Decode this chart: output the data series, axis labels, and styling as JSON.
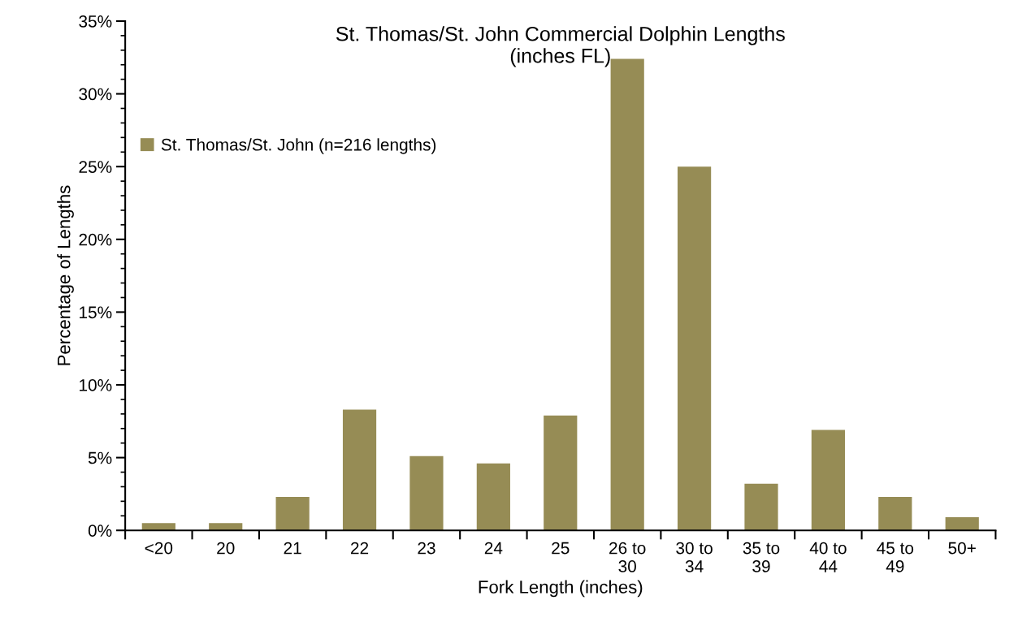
{
  "chart_data": {
    "type": "bar",
    "title": "St. Thomas/St. John Commercial Dolphin Lengths\n(inches FL)",
    "xlabel": "Fork Length (inches)",
    "ylabel": "Percentage of Lengths",
    "categories": [
      "<20",
      "20",
      "21",
      "22",
      "23",
      "24",
      "25",
      "26 to\n30",
      "30 to\n34",
      "35 to\n39",
      "40 to\n44",
      "45 to\n49",
      "50+"
    ],
    "series": [
      {
        "name": "St. Thomas/St. John (n=216 lengths)",
        "color": "#968c55",
        "values": [
          0.5,
          0.5,
          2.3,
          8.3,
          5.1,
          4.6,
          7.9,
          32.4,
          25.0,
          3.2,
          6.9,
          2.3,
          0.9
        ]
      }
    ],
    "ylim": [
      0,
      35
    ],
    "yticks": [
      {
        "value": 0,
        "label": "0%"
      },
      {
        "value": 5,
        "label": "5%"
      },
      {
        "value": 10,
        "label": "10%"
      },
      {
        "value": 15,
        "label": "15%"
      },
      {
        "value": 20,
        "label": "20%"
      },
      {
        "value": 25,
        "label": "25%"
      },
      {
        "value": 30,
        "label": "30%"
      },
      {
        "value": 35,
        "label": "35%"
      }
    ],
    "grid": false,
    "legend": "top left"
  }
}
